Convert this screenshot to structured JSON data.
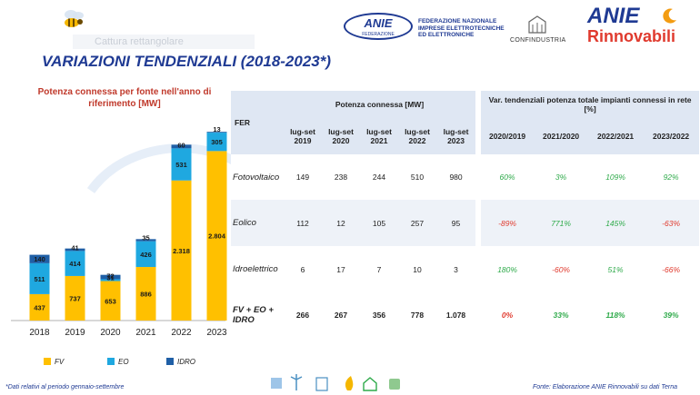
{
  "header": {
    "title": "VARIAZIONI TENDENZIALI (2018-2023*)",
    "ghost_placeholder": "Cattura rettangolare",
    "anie_logo_text": "ANIE",
    "anie_logo_sub": "FEDERAZIONE",
    "federation_text": [
      "FEDERAZIONE NAZIONALE",
      "IMPRESE ELETTROTECNICHE",
      "ED ELETTRONICHE"
    ],
    "confindustria_text": "CONFINDUSTRIA",
    "anie_rinnovabili_1": "ANIE",
    "anie_rinnovabili_2": "Rinnovabili"
  },
  "chart_data": {
    "type": "bar",
    "stacked": true,
    "title": "Potenza connessa per fonte nell'anno di riferimento [MW]",
    "categories": [
      "2018",
      "2019",
      "2020",
      "2021",
      "2022",
      "2023"
    ],
    "last_category_mark": "*",
    "series": [
      {
        "name": "FV",
        "color": "#ffc000",
        "values": [
          437,
          737,
          653,
          886,
          2318,
          2804
        ],
        "labels": [
          "437",
          "737",
          "653",
          "886",
          "2.318",
          "2.804"
        ]
      },
      {
        "name": "EO",
        "color": "#1fa8e0",
        "values": [
          511,
          414,
          31,
          426,
          531,
          305
        ],
        "labels": [
          "511",
          "414",
          "31",
          "426",
          "531",
          "305"
        ]
      },
      {
        "name": "IDRO",
        "color": "#1f5fa6",
        "values": [
          140,
          41,
          72,
          35,
          60,
          13
        ],
        "labels": [
          "140",
          "41",
          "72",
          "35",
          "60",
          "13"
        ]
      }
    ],
    "ylim": [
      0,
      3200
    ],
    "grid": false,
    "legend_position": "bottom"
  },
  "table": {
    "fer_header": "FER",
    "group1_header": "Potenza connessa [MW]",
    "group2_header": "Var. tendenziali potenza totale impianti connessi in rete [%]",
    "period_headers": [
      [
        "lug-set",
        "2019"
      ],
      [
        "lug-set",
        "2020"
      ],
      [
        "lug-set",
        "2021"
      ],
      [
        "lug-set",
        "2022"
      ],
      [
        "lug-set",
        "2023"
      ]
    ],
    "var_headers": [
      "2020/2019",
      "2021/2020",
      "2022/2021",
      "2023/2022"
    ],
    "rows": [
      {
        "label": "Fotovoltaico",
        "values": [
          "149",
          "238",
          "244",
          "510",
          "980"
        ],
        "vars": [
          "60%",
          "3%",
          "109%",
          "92%"
        ]
      },
      {
        "label": "Eolico",
        "values": [
          "112",
          "12",
          "105",
          "257",
          "95"
        ],
        "vars": [
          "-89%",
          "771%",
          "145%",
          "-63%"
        ]
      },
      {
        "label": "Idroelettrico",
        "values": [
          "6",
          "17",
          "7",
          "10",
          "3"
        ],
        "vars": [
          "180%",
          "-60%",
          "51%",
          "-66%"
        ]
      },
      {
        "label": "FV + EO + IDRO",
        "values": [
          "266",
          "267",
          "356",
          "778",
          "1.078"
        ],
        "vars": [
          "0%",
          "33%",
          "118%",
          "39%"
        ]
      }
    ]
  },
  "footer": {
    "left": "*Dati relativi al periodo gennaio-settembre",
    "right": "Fonte: Elaborazione ANIE Rinnovabili su dati Terna"
  }
}
